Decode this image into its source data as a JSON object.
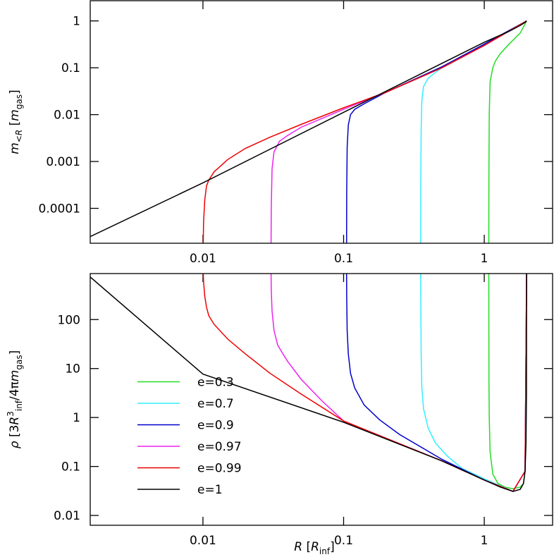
{
  "chart_data": [
    {
      "type": "line",
      "xscale": "log",
      "yscale": "log",
      "xlim": [
        0.00158,
        3.06
      ],
      "ylim": [
        1.8e-05,
        2.7
      ],
      "xticks": [
        0.01,
        0.1,
        1
      ],
      "yticks": [
        0.0001,
        0.001,
        0.01,
        0.1,
        1
      ],
      "ylabel": [
        {
          "text": "m",
          "italic": true
        },
        {
          "text": "<R",
          "italic": true,
          "sub": true
        },
        {
          "text": " [",
          "italic": false
        },
        {
          "text": "m",
          "italic": true
        },
        {
          "text": "gas",
          "sub": true,
          "italic": false
        },
        {
          "text": "]",
          "italic": false
        }
      ],
      "legend": false,
      "series": [
        {
          "color": "#22dd22",
          "x": [
            1.077,
            1.079,
            1.085,
            1.1,
            1.15,
            1.2,
            1.3,
            1.5,
            1.8,
            2
          ],
          "values": [
            1.8e-05,
            0.0005,
            0.01,
            0.05,
            0.1,
            0.14,
            0.2,
            0.32,
            0.55,
            1
          ]
        },
        {
          "color": "#33eeff",
          "x": [
            0.353,
            0.354,
            0.356,
            0.36,
            0.37,
            0.4,
            0.45,
            0.5,
            1,
            2
          ],
          "values": [
            1.8e-05,
            0.0005,
            0.005,
            0.02,
            0.04,
            0.06,
            0.08,
            0.1,
            0.32,
            1
          ]
        },
        {
          "color": "#0000cc",
          "x": [
            0.105,
            0.1052,
            0.106,
            0.108,
            0.112,
            0.12,
            0.14,
            0.2,
            0.5,
            1,
            2
          ],
          "values": [
            1.8e-05,
            0.0002,
            0.002,
            0.006,
            0.01,
            0.013,
            0.017,
            0.03,
            0.105,
            0.32,
            1
          ]
        },
        {
          "color": "#ee22ee",
          "x": [
            0.0305,
            0.0306,
            0.031,
            0.032,
            0.035,
            0.04,
            0.05,
            0.1,
            0.2,
            0.5,
            1,
            2
          ],
          "values": [
            1.8e-05,
            0.0001,
            0.0007,
            0.0016,
            0.0027,
            0.0036,
            0.0054,
            0.013,
            0.03,
            0.1,
            0.3,
            1
          ]
        },
        {
          "color": "#ee0000",
          "x": [
            0.01005,
            0.0101,
            0.0103,
            0.0106,
            0.011,
            0.012,
            0.015,
            0.02,
            0.03,
            0.05,
            0.1,
            0.2,
            0.5,
            1,
            2
          ],
          "values": [
            1.8e-05,
            5e-05,
            0.00015,
            0.0003,
            0.0004,
            0.0006,
            0.0011,
            0.0019,
            0.0033,
            0.0062,
            0.014,
            0.03,
            0.1,
            0.3,
            1
          ]
        },
        {
          "color": "#000000",
          "x": [
            0.00158,
            0.01,
            0.1,
            1,
            1.5,
            1.8,
            1.95,
            2
          ],
          "values": [
            2.5e-05,
            0.00035,
            0.0112,
            0.35,
            0.6,
            0.8,
            0.93,
            1
          ]
        }
      ]
    },
    {
      "type": "line",
      "xscale": "log",
      "yscale": "log",
      "xlim": [
        0.00158,
        3.06
      ],
      "ylim": [
        0.0063,
        870
      ],
      "xticks": [
        0.01,
        0.1,
        1
      ],
      "yticks": [
        0.01,
        0.1,
        1,
        10,
        100
      ],
      "xlabel": [
        {
          "text": "R",
          "italic": true
        },
        {
          "text": "  [",
          "italic": false
        },
        {
          "text": "R",
          "italic": true
        },
        {
          "text": "inf",
          "sub": true,
          "italic": false
        },
        {
          "text": "]",
          "italic": false
        }
      ],
      "ylabel": [
        {
          "text": "ρ",
          "italic": true
        },
        {
          "text": " [3",
          "italic": false
        },
        {
          "text": "R",
          "italic": true
        },
        {
          "text": "3",
          "sup": true,
          "italic": false
        },
        {
          "text": "inf",
          "sub": true,
          "italic": false
        },
        {
          "text": "/4π",
          "italic": false
        },
        {
          "text": "m",
          "italic": true
        },
        {
          "text": "gas",
          "sub": true,
          "italic": false
        },
        {
          "text": "]",
          "italic": false
        }
      ],
      "legend": "lower left",
      "series": [
        {
          "name": "e=0.3",
          "color": "#22dd22",
          "x": [
            1.077,
            1.078,
            1.08,
            1.085,
            1.1,
            1.15,
            1.25,
            1.4,
            1.6,
            1.8,
            1.9,
            1.95,
            2
          ],
          "values": [
            870,
            100,
            5,
            1,
            0.2,
            0.07,
            0.045,
            0.038,
            0.035,
            0.038,
            0.045,
            0.08,
            870
          ]
        },
        {
          "name": "e=0.7",
          "color": "#33eeff",
          "x": [
            0.353,
            0.354,
            0.356,
            0.36,
            0.37,
            0.4,
            0.45,
            0.55,
            0.7,
            1,
            1.6,
            1.95,
            2
          ],
          "values": [
            870,
            200,
            20,
            4,
            1.5,
            0.6,
            0.3,
            0.16,
            0.09,
            0.056,
            0.031,
            0.08,
            870
          ]
        },
        {
          "name": "e=0.9",
          "color": "#0000cc",
          "x": [
            0.105,
            0.1052,
            0.106,
            0.108,
            0.112,
            0.12,
            0.14,
            0.18,
            0.25,
            0.5,
            1,
            1.6,
            1.95,
            2
          ],
          "values": [
            870,
            300,
            60,
            20,
            8,
            4,
            1.8,
            0.9,
            0.45,
            0.14,
            0.053,
            0.031,
            0.08,
            870
          ]
        },
        {
          "name": "e=0.97",
          "color": "#ee22ee",
          "x": [
            0.0305,
            0.0306,
            0.031,
            0.032,
            0.034,
            0.037,
            0.04,
            0.05,
            0.07,
            0.1,
            0.5,
            1,
            1.6,
            1.95,
            2
          ],
          "values": [
            870,
            400,
            150,
            60,
            30,
            20,
            14,
            6,
            2.2,
            0.85,
            0.13,
            0.053,
            0.031,
            0.08,
            870
          ]
        },
        {
          "name": "e=0.99",
          "color": "#ee0000",
          "x": [
            0.01005,
            0.0101,
            0.0103,
            0.0106,
            0.011,
            0.012,
            0.015,
            0.02,
            0.03,
            0.05,
            0.1,
            0.5,
            1,
            1.6,
            1.95,
            2
          ],
          "values": [
            870,
            600,
            300,
            180,
            120,
            80,
            40,
            20,
            8,
            3,
            0.85,
            0.13,
            0.053,
            0.031,
            0.08,
            870
          ]
        },
        {
          "name": "e=1",
          "color": "#000000",
          "x": [
            0.00158,
            0.01,
            0.1,
            0.5,
            1,
            1.3,
            1.6,
            1.8,
            1.9,
            1.95,
            1.98,
            1.995,
            2
          ],
          "values": [
            740,
            7.7,
            0.8,
            0.13,
            0.053,
            0.038,
            0.031,
            0.034,
            0.045,
            0.08,
            0.3,
            3,
            870
          ]
        }
      ]
    }
  ]
}
